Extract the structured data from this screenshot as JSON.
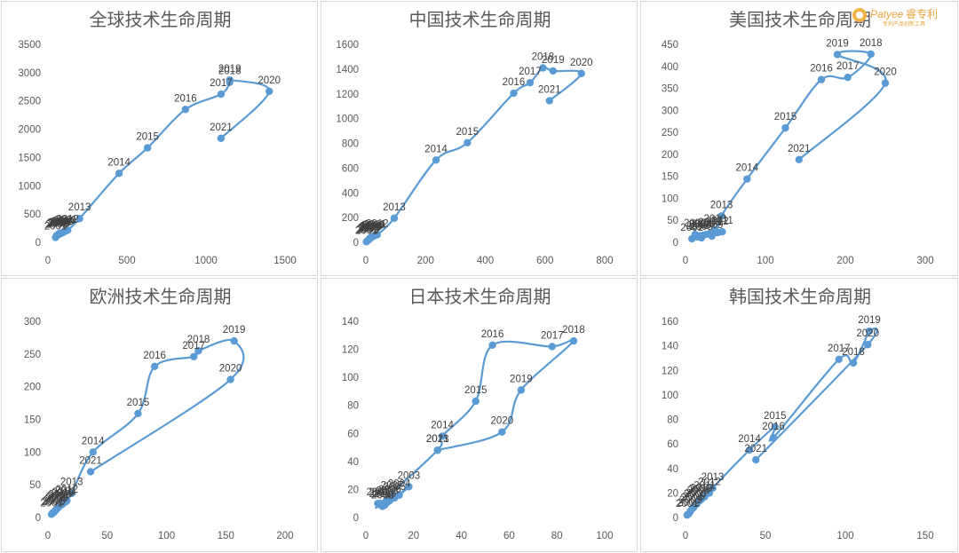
{
  "logo": {
    "text": "Patyee",
    "cn": "睿专利",
    "sub": "专利产品创新工具"
  },
  "chart_data": [
    {
      "type": "scatter",
      "title": "全球技术生命周期",
      "xlim": [
        0,
        1500
      ],
      "ylim": [
        0,
        3500
      ],
      "xticks": [
        0,
        500,
        1000,
        1500
      ],
      "yticks": [
        0,
        500,
        1000,
        1500,
        2000,
        2500,
        3000,
        3500
      ],
      "points": [
        {
          "label": "2001",
          "x": 48,
          "y": 85
        },
        {
          "label": "2002",
          "x": 55,
          "y": 120
        },
        {
          "label": "2003",
          "x": 62,
          "y": 135
        },
        {
          "label": "2004",
          "x": 68,
          "y": 150
        },
        {
          "label": "2005",
          "x": 70,
          "y": 140
        },
        {
          "label": "2006",
          "x": 75,
          "y": 160
        },
        {
          "label": "2007",
          "x": 80,
          "y": 155
        },
        {
          "label": "2008",
          "x": 88,
          "y": 165
        },
        {
          "label": "2009",
          "x": 95,
          "y": 175
        },
        {
          "label": "2010",
          "x": 105,
          "y": 190
        },
        {
          "label": "2011",
          "x": 115,
          "y": 205
        },
        {
          "label": "2012",
          "x": 125,
          "y": 215
        },
        {
          "label": "2013",
          "x": 200,
          "y": 420
        },
        {
          "label": "2014",
          "x": 450,
          "y": 1220
        },
        {
          "label": "2015",
          "x": 630,
          "y": 1670
        },
        {
          "label": "2016",
          "x": 870,
          "y": 2350
        },
        {
          "label": "2017",
          "x": 1095,
          "y": 2620
        },
        {
          "label": "2018",
          "x": 1150,
          "y": 2830
        },
        {
          "label": "2019",
          "x": 1150,
          "y": 2870
        },
        {
          "label": "2020",
          "x": 1400,
          "y": 2670
        },
        {
          "label": "2021",
          "x": 1095,
          "y": 1840
        }
      ]
    },
    {
      "type": "scatter",
      "title": "中国技术生命周期",
      "xlim": [
        0,
        800
      ],
      "ylim": [
        0,
        1600
      ],
      "xticks": [
        0,
        200,
        400,
        600,
        800
      ],
      "yticks": [
        0,
        200,
        400,
        600,
        800,
        1000,
        1200,
        1400,
        1600
      ],
      "points": [
        {
          "label": "2001",
          "x": 2,
          "y": 5
        },
        {
          "label": "2002",
          "x": 5,
          "y": 12
        },
        {
          "label": "2003",
          "x": 8,
          "y": 18
        },
        {
          "label": "2004",
          "x": 10,
          "y": 22
        },
        {
          "label": "2005",
          "x": 12,
          "y": 28
        },
        {
          "label": "2006",
          "x": 14,
          "y": 32
        },
        {
          "label": "2007",
          "x": 16,
          "y": 36
        },
        {
          "label": "2008",
          "x": 18,
          "y": 40
        },
        {
          "label": "2009",
          "x": 22,
          "y": 45
        },
        {
          "label": "2010",
          "x": 26,
          "y": 50
        },
        {
          "label": "2011",
          "x": 30,
          "y": 55
        },
        {
          "label": "2012",
          "x": 38,
          "y": 62
        },
        {
          "label": "2013",
          "x": 95,
          "y": 195
        },
        {
          "label": "2014",
          "x": 235,
          "y": 665
        },
        {
          "label": "2015",
          "x": 340,
          "y": 805
        },
        {
          "label": "2016",
          "x": 495,
          "y": 1205
        },
        {
          "label": "2017",
          "x": 550,
          "y": 1290
        },
        {
          "label": "2018",
          "x": 593,
          "y": 1410
        },
        {
          "label": "2019",
          "x": 627,
          "y": 1385
        },
        {
          "label": "2020",
          "x": 722,
          "y": 1365
        },
        {
          "label": "2021",
          "x": 615,
          "y": 1145
        }
      ]
    },
    {
      "type": "scatter",
      "title": "美国技术生命周期",
      "xlim": [
        0,
        300
      ],
      "ylim": [
        0,
        450
      ],
      "xticks": [
        0,
        100,
        200,
        300
      ],
      "yticks": [
        0,
        50,
        100,
        150,
        200,
        250,
        300,
        350,
        400,
        450
      ],
      "points": [
        {
          "label": "2001",
          "x": 8,
          "y": 8
        },
        {
          "label": "2002",
          "x": 12,
          "y": 18
        },
        {
          "label": "2003",
          "x": 15,
          "y": 12
        },
        {
          "label": "2004",
          "x": 18,
          "y": 15
        },
        {
          "label": "2005",
          "x": 20,
          "y": 10
        },
        {
          "label": "2006",
          "x": 22,
          "y": 16
        },
        {
          "label": "2007",
          "x": 26,
          "y": 18
        },
        {
          "label": "2008",
          "x": 30,
          "y": 20
        },
        {
          "label": "2009",
          "x": 33,
          "y": 14
        },
        {
          "label": "2010",
          "x": 37,
          "y": 28
        },
        {
          "label": "2011",
          "x": 46,
          "y": 24
        },
        {
          "label": "2012",
          "x": 40,
          "y": 22
        },
        {
          "label": "2013",
          "x": 45,
          "y": 60
        },
        {
          "label": "2014",
          "x": 77,
          "y": 144
        },
        {
          "label": "2015",
          "x": 125,
          "y": 260
        },
        {
          "label": "2016",
          "x": 170,
          "y": 370
        },
        {
          "label": "2017",
          "x": 203,
          "y": 375
        },
        {
          "label": "2018",
          "x": 232,
          "y": 428
        },
        {
          "label": "2019",
          "x": 190,
          "y": 427
        },
        {
          "label": "2020",
          "x": 250,
          "y": 362
        },
        {
          "label": "2021",
          "x": 142,
          "y": 188
        }
      ]
    },
    {
      "type": "scatter",
      "title": "欧洲技术生命周期",
      "xlim": [
        0,
        200
      ],
      "ylim": [
        0,
        300
      ],
      "xticks": [
        0,
        50,
        100,
        150,
        200
      ],
      "yticks": [
        0,
        50,
        100,
        150,
        200,
        250,
        300
      ],
      "points": [
        {
          "label": "2001",
          "x": 3,
          "y": 5
        },
        {
          "label": "2002",
          "x": 4,
          "y": 7
        },
        {
          "label": "2003",
          "x": 5,
          "y": 8
        },
        {
          "label": "2004",
          "x": 6,
          "y": 10
        },
        {
          "label": "2005",
          "x": 7,
          "y": 12
        },
        {
          "label": "2006",
          "x": 8,
          "y": 14
        },
        {
          "label": "2007",
          "x": 9,
          "y": 16
        },
        {
          "label": "2008",
          "x": 10,
          "y": 18
        },
        {
          "label": "2009",
          "x": 12,
          "y": 20
        },
        {
          "label": "2010",
          "x": 13,
          "y": 22
        },
        {
          "label": "2011",
          "x": 15,
          "y": 24
        },
        {
          "label": "2012",
          "x": 16,
          "y": 26
        },
        {
          "label": "2013",
          "x": 20,
          "y": 37
        },
        {
          "label": "2014",
          "x": 38,
          "y": 100
        },
        {
          "label": "2015",
          "x": 76,
          "y": 159
        },
        {
          "label": "2016",
          "x": 90,
          "y": 231
        },
        {
          "label": "2017",
          "x": 123,
          "y": 246
        },
        {
          "label": "2018",
          "x": 127,
          "y": 255
        },
        {
          "label": "2019",
          "x": 157,
          "y": 270
        },
        {
          "label": "2020",
          "x": 154,
          "y": 211
        },
        {
          "label": "2021",
          "x": 36,
          "y": 70
        }
      ]
    },
    {
      "type": "scatter",
      "title": "日本技术生命周期",
      "xlim": [
        0,
        100
      ],
      "ylim": [
        0,
        140
      ],
      "xticks": [
        0,
        20,
        40,
        60,
        80,
        100
      ],
      "yticks": [
        0,
        20,
        40,
        60,
        80,
        100,
        120,
        140
      ],
      "points": [
        {
          "label": "2001",
          "x": 5,
          "y": 10
        },
        {
          "label": "2002",
          "x": 7,
          "y": 8
        },
        {
          "label": "2003",
          "x": 18,
          "y": 22
        },
        {
          "label": "2004",
          "x": 14,
          "y": 16
        },
        {
          "label": "2005",
          "x": 12,
          "y": 14
        },
        {
          "label": "2006",
          "x": 10,
          "y": 12
        },
        {
          "label": "2007",
          "x": 11,
          "y": 15
        },
        {
          "label": "2008",
          "x": 9,
          "y": 11
        },
        {
          "label": "2009",
          "x": 8,
          "y": 9
        },
        {
          "label": "2010",
          "x": 7,
          "y": 8
        },
        {
          "label": "2011",
          "x": 6,
          "y": 9
        },
        {
          "label": "2012",
          "x": 6,
          "y": 10
        },
        {
          "label": "2013",
          "x": 30,
          "y": 48
        },
        {
          "label": "2014",
          "x": 32,
          "y": 58
        },
        {
          "label": "2015",
          "x": 46,
          "y": 83
        },
        {
          "label": "2016",
          "x": 53,
          "y": 123
        },
        {
          "label": "2017",
          "x": 78,
          "y": 122
        },
        {
          "label": "2018",
          "x": 87,
          "y": 126
        },
        {
          "label": "2019",
          "x": 65,
          "y": 91
        },
        {
          "label": "2020",
          "x": 57,
          "y": 61
        },
        {
          "label": "2021",
          "x": 30,
          "y": 48
        }
      ]
    },
    {
      "type": "scatter",
      "title": "韩国技术生命周期",
      "xlim": [
        0,
        150
      ],
      "ylim": [
        0,
        160
      ],
      "xticks": [
        0,
        50,
        100,
        150
      ],
      "yticks": [
        0,
        20,
        40,
        60,
        80,
        100,
        120,
        140,
        160
      ],
      "points": [
        {
          "label": "2001",
          "x": 1,
          "y": 2
        },
        {
          "label": "2002",
          "x": 2,
          "y": 3
        },
        {
          "label": "2003",
          "x": 3,
          "y": 5
        },
        {
          "label": "2004",
          "x": 4,
          "y": 7
        },
        {
          "label": "2005",
          "x": 5,
          "y": 8
        },
        {
          "label": "2006",
          "x": 6,
          "y": 10
        },
        {
          "label": "2007",
          "x": 7,
          "y": 11
        },
        {
          "label": "2008",
          "x": 8,
          "y": 13
        },
        {
          "label": "2009",
          "x": 9,
          "y": 14
        },
        {
          "label": "2010",
          "x": 10,
          "y": 15
        },
        {
          "label": "2011",
          "x": 12,
          "y": 17
        },
        {
          "label": "2012",
          "x": 15,
          "y": 20
        },
        {
          "label": "2013",
          "x": 17,
          "y": 24
        },
        {
          "label": "2014",
          "x": 40,
          "y": 55
        },
        {
          "label": "2015",
          "x": 56,
          "y": 74
        },
        {
          "label": "2016",
          "x": 55,
          "y": 65
        },
        {
          "label": "2017",
          "x": 96,
          "y": 129
        },
        {
          "label": "2018",
          "x": 105,
          "y": 126
        },
        {
          "label": "2019",
          "x": 115,
          "y": 152
        },
        {
          "label": "2020",
          "x": 114,
          "y": 141
        },
        {
          "label": "2021",
          "x": 44,
          "y": 47
        }
      ]
    }
  ]
}
